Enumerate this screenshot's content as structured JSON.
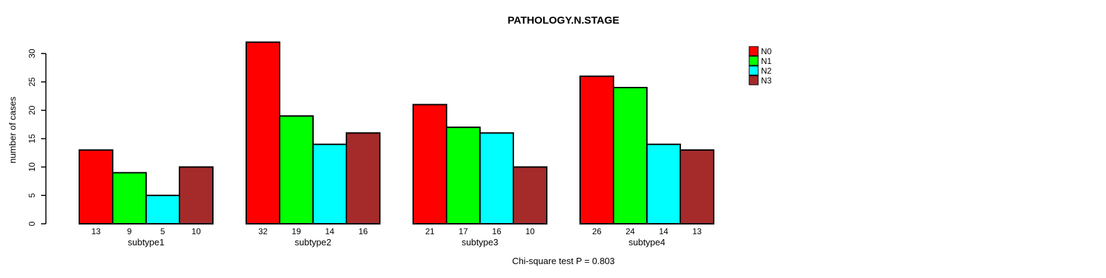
{
  "title": "PATHOLOGY.N.STAGE",
  "y_axis_label": "number of cases",
  "footer": "Chi-square test P = 0.803",
  "chart_data": {
    "type": "bar",
    "title": "PATHOLOGY.N.STAGE",
    "xlabel": "",
    "ylabel": "number of cases",
    "categories": [
      "subtype1",
      "subtype2",
      "subtype3",
      "subtype4"
    ],
    "series": [
      {
        "name": "N0",
        "color": "#ff0000",
        "values": [
          13,
          32,
          21,
          26
        ]
      },
      {
        "name": "N1",
        "color": "#00ff00",
        "values": [
          9,
          19,
          17,
          24
        ]
      },
      {
        "name": "N2",
        "color": "#00ffff",
        "values": [
          5,
          14,
          16,
          14
        ]
      },
      {
        "name": "N3",
        "color": "#a52a2a",
        "values": [
          10,
          16,
          10,
          13
        ]
      }
    ],
    "value_labels": [
      [
        13,
        9,
        5,
        10
      ],
      [
        32,
        19,
        14,
        16
      ],
      [
        21,
        17,
        16,
        10
      ],
      [
        26,
        24,
        14,
        13
      ]
    ],
    "yticks": [
      0,
      5,
      10,
      15,
      20,
      25,
      30
    ],
    "ylim": [
      0,
      30
    ],
    "grid": false,
    "legend_position": "top-right",
    "annotation": "Chi-square test P = 0.803",
    "bar_border_color": "#000000",
    "axis_color": "#000000"
  }
}
